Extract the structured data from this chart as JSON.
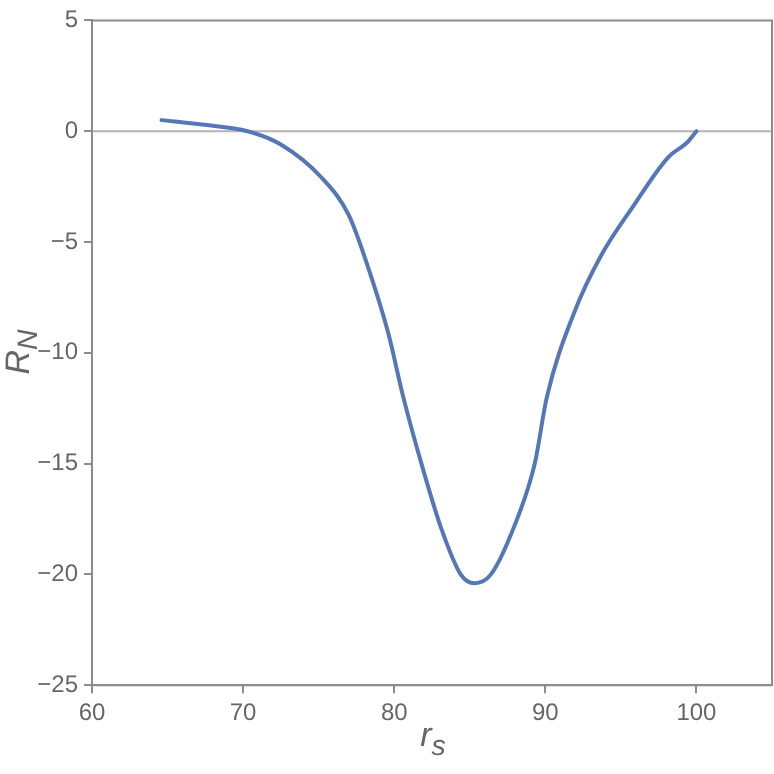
{
  "chart_data": {
    "type": "line",
    "xlabel": "r$_{s}$",
    "ylabel": "R$_{N}$",
    "series": [
      {
        "color": "#5677b5",
        "x": [
          64.6,
          67.3,
          70.3,
          72.5,
          75.2,
          77,
          78.3,
          79.6,
          80.6,
          81.8,
          83.1,
          84.4,
          85.3,
          86.4,
          87.9,
          89.3,
          90.1,
          91.9,
          93.7,
          95.9,
          98.1,
          99.4,
          100
        ],
        "values": [
          0.5,
          0.3,
          0,
          -0.6,
          -2.1,
          -3.8,
          -6.2,
          -9.1,
          -12,
          -15,
          -17.9,
          -20,
          -20.4,
          -20,
          -17.9,
          -15,
          -12,
          -8.2,
          -5.6,
          -3.3,
          -1.2,
          -0.5,
          0
        ]
      }
    ],
    "xlim": [
      60,
      105
    ],
    "xticks": [
      60,
      70,
      80,
      90,
      100
    ],
    "ylim": [
      -25,
      5
    ],
    "yticks": [
      -25,
      -20,
      -15,
      -10,
      -5,
      0,
      5
    ],
    "ref_lines": [
      {
        "axis": "y",
        "value": 0,
        "color": "#b3b3b3"
      }
    ],
    "grid": false,
    "legend": false,
    "marker": "none",
    "line_style": "solid"
  }
}
